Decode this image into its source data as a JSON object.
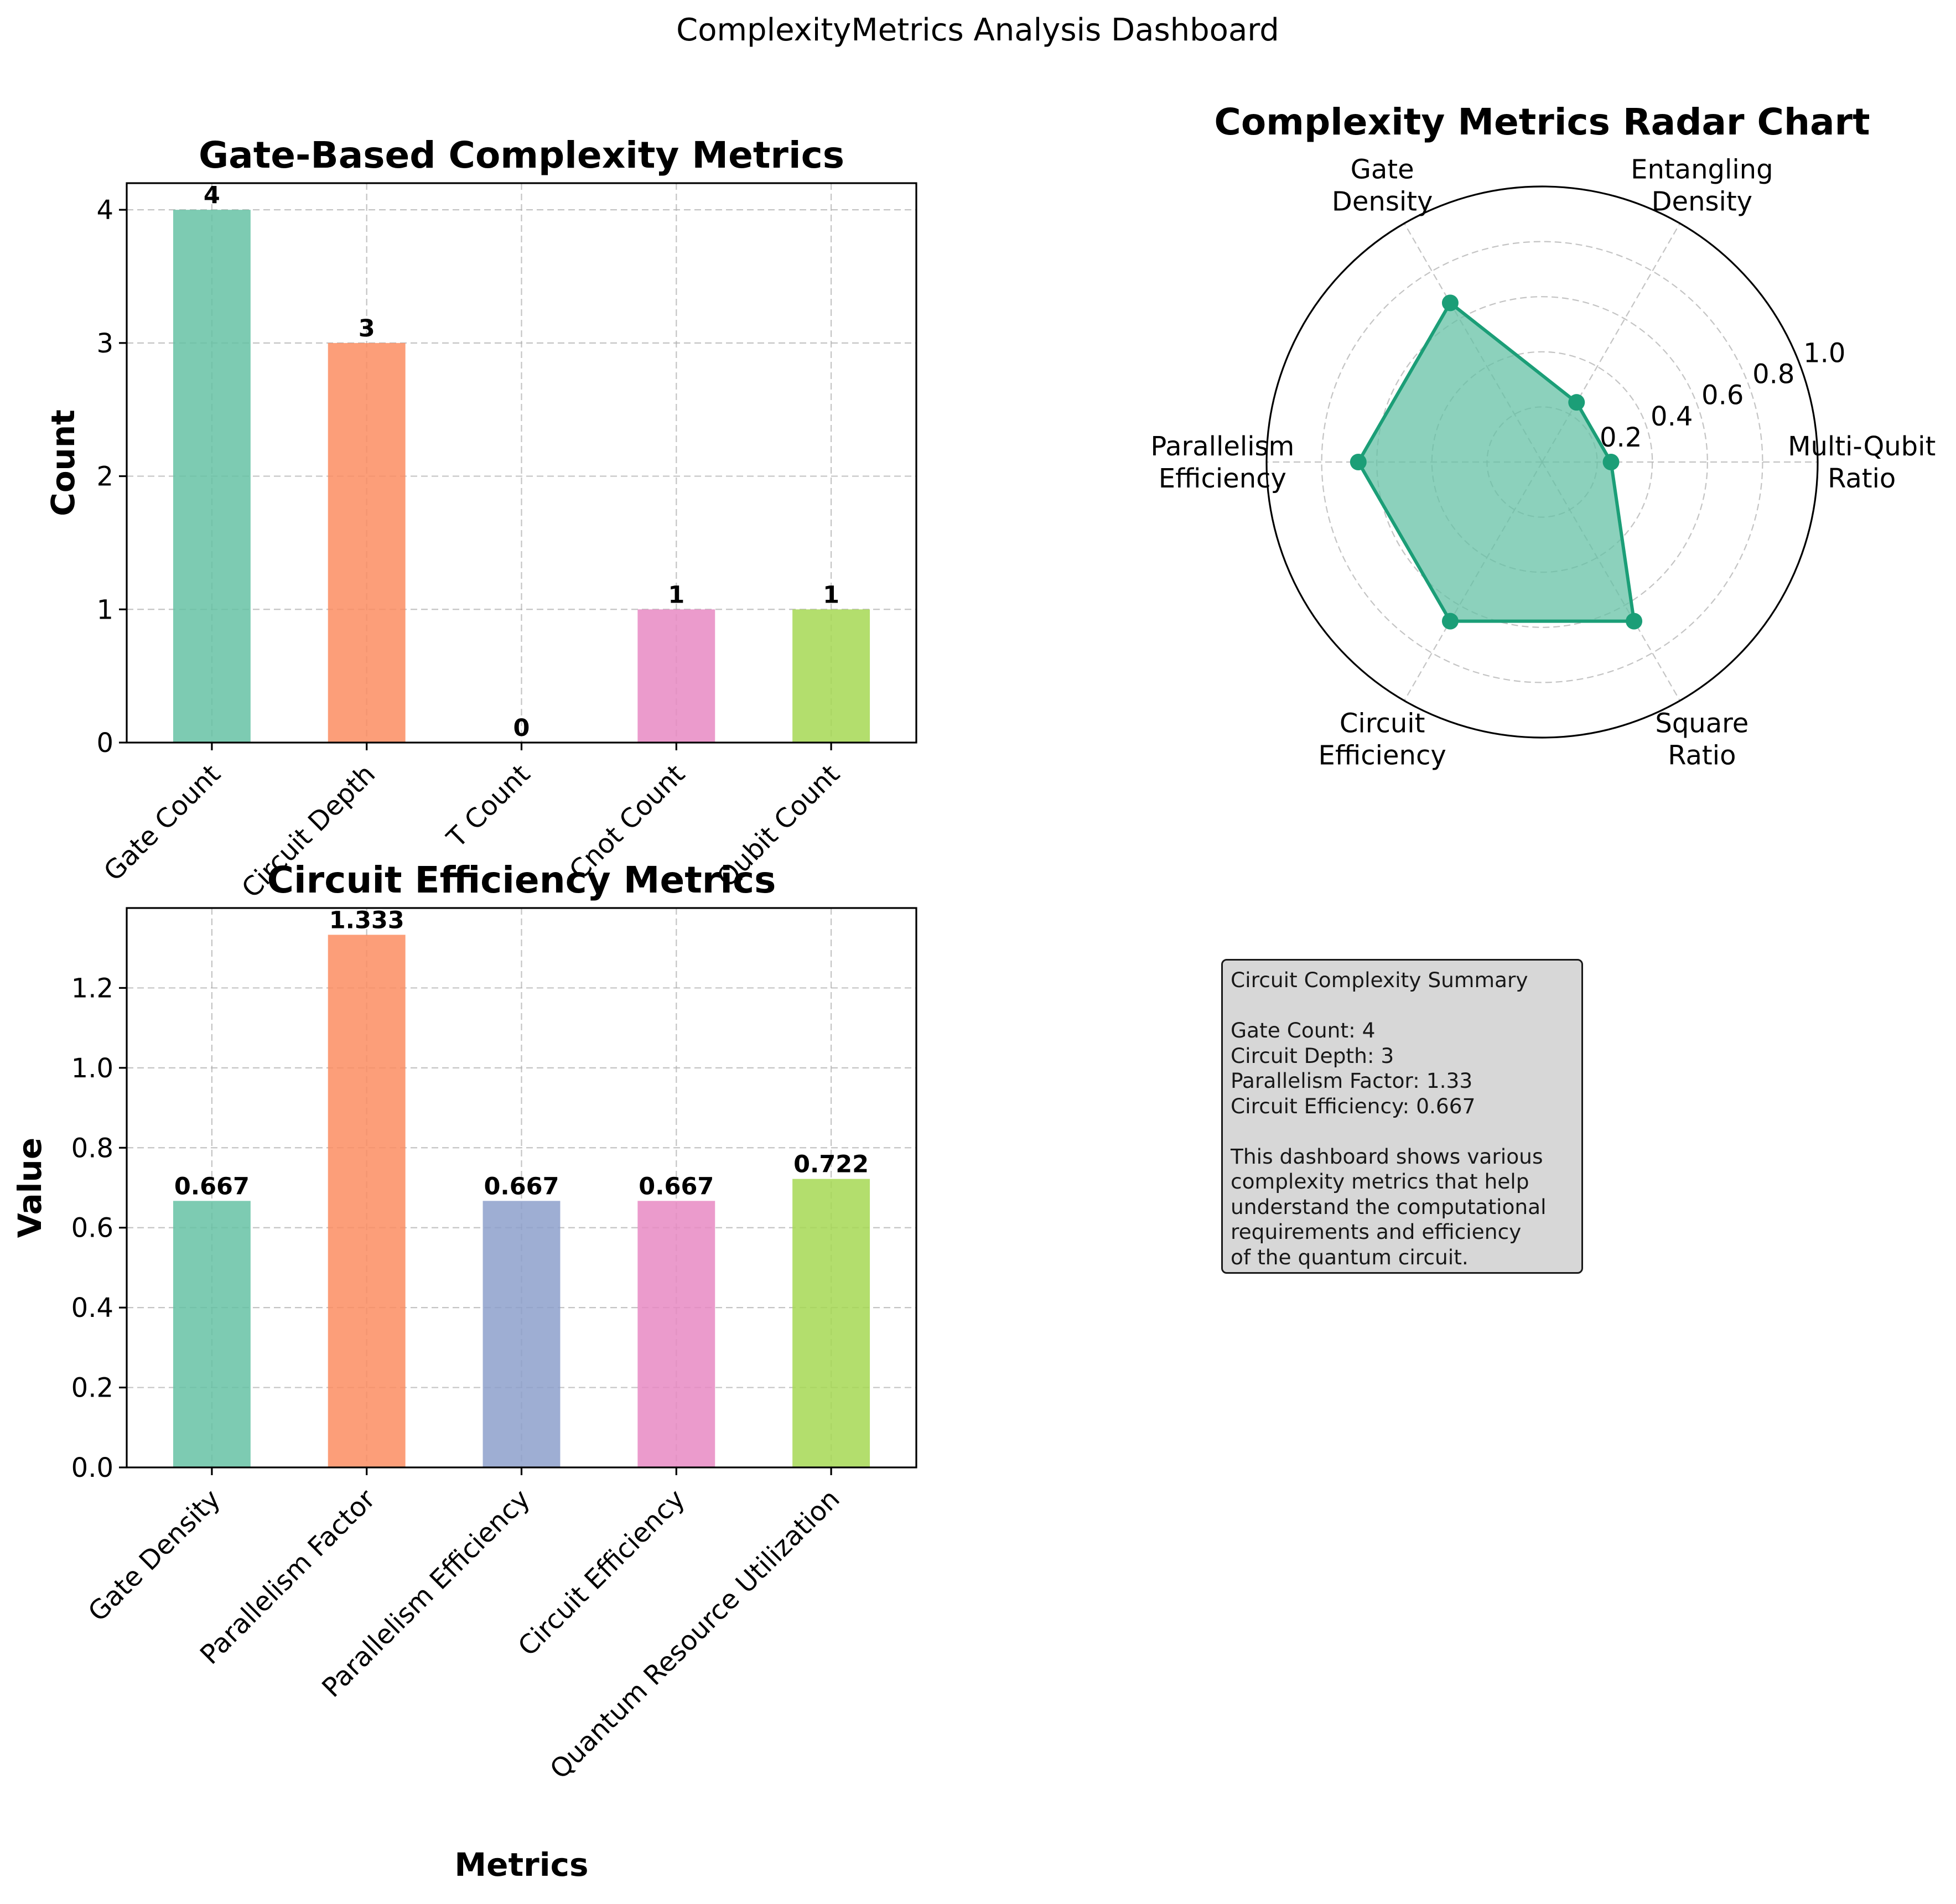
{
  "suptitle": "ComplexityMetrics Analysis Dashboard",
  "chart_data": [
    {
      "type": "bar",
      "title": "Gate-Based Complexity Metrics",
      "xlabel": "",
      "ylabel": "Count",
      "categories": [
        "Gate Count",
        "Circuit Depth",
        "T Count",
        "Cnot Count",
        "Qubit Count"
      ],
      "values": [
        4,
        3,
        0,
        1,
        1
      ],
      "value_labels": [
        "4",
        "3",
        "0",
        "1",
        "1"
      ],
      "colors": [
        "#66c2a5",
        "#fc8d62",
        "#8da0cb",
        "#e78ac3",
        "#a6d854"
      ],
      "ylim": [
        0,
        4.2
      ],
      "yticks": [
        0,
        1,
        2,
        3,
        4
      ],
      "ytick_labels": [
        "0",
        "1",
        "2",
        "3",
        "4"
      ],
      "grid": true
    },
    {
      "type": "radar",
      "title": "Complexity Metrics Radar Chart",
      "axes": [
        "Multi-Qubit\nRatio",
        "Entangling\nDensity",
        "Gate\nDensity",
        "Parallelism\nEfficiency",
        "Circuit\nEfficiency",
        "Square\nRatio"
      ],
      "values": [
        0.25,
        0.25,
        0.667,
        0.667,
        0.667,
        0.667
      ],
      "rlim": [
        0,
        1.0
      ],
      "rticks": [
        0.2,
        0.4,
        0.6,
        0.8,
        1.0
      ],
      "rtick_labels": [
        "0.2",
        "0.4",
        "0.6",
        "0.8",
        "1.0"
      ],
      "color": "#1b9e77",
      "fill_color": "#66c2a5",
      "grid": true
    },
    {
      "type": "bar",
      "title": "Circuit Efficiency Metrics",
      "xlabel": "Metrics",
      "ylabel": "Value",
      "categories": [
        "Gate Density",
        "Parallelism Factor",
        "Parallelism Efficiency",
        "Circuit Efficiency",
        "Quantum Resource Utilization"
      ],
      "values": [
        0.667,
        1.333,
        0.667,
        0.667,
        0.722
      ],
      "value_labels": [
        "0.667",
        "1.333",
        "0.667",
        "0.667",
        "0.722"
      ],
      "colors": [
        "#66c2a5",
        "#fc8d62",
        "#8da0cb",
        "#e78ac3",
        "#a6d854"
      ],
      "ylim": [
        0,
        1.4
      ],
      "yticks": [
        0.0,
        0.2,
        0.4,
        0.6,
        0.8,
        1.0,
        1.2
      ],
      "ytick_labels": [
        "0.0",
        "0.2",
        "0.4",
        "0.6",
        "0.8",
        "1.0",
        "1.2"
      ],
      "grid": true
    }
  ],
  "summary": {
    "lines": [
      "Circuit Complexity Summary",
      "",
      "Gate Count: 4",
      "Circuit Depth: 3",
      "Parallelism Factor: 1.33",
      "Circuit Efficiency: 0.667",
      "",
      "This dashboard shows various",
      "complexity metrics that help",
      "understand the computational",
      "requirements and efficiency",
      "of the quantum circuit."
    ]
  }
}
